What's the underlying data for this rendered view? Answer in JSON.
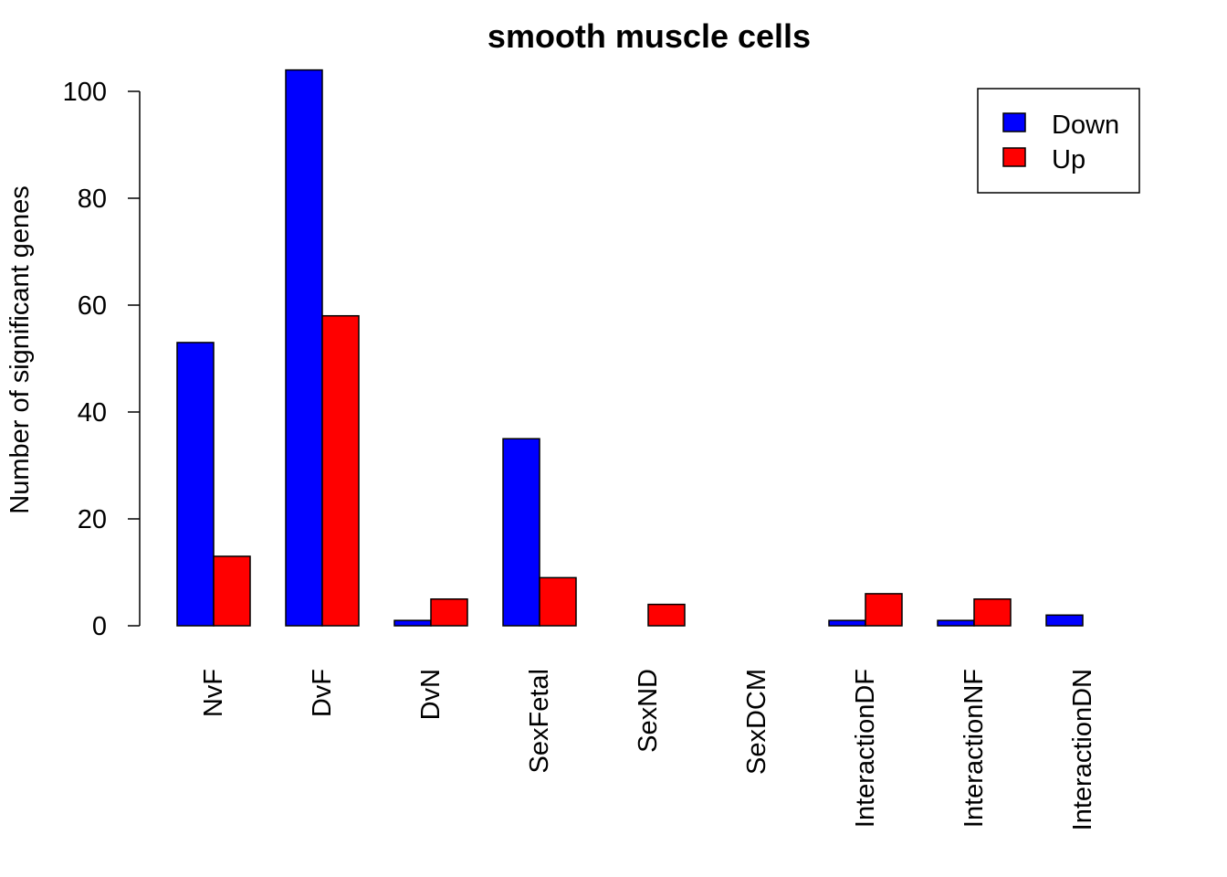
{
  "chart_data": {
    "type": "bar",
    "title": "smooth muscle cells",
    "xlabel": "",
    "ylabel": "Number of significant genes",
    "categories": [
      "NvF",
      "DvF",
      "DvN",
      "SexFetal",
      "SexND",
      "SexDCM",
      "InteractionDF",
      "InteractionNF",
      "InteractionDN"
    ],
    "series": [
      {
        "name": "Down",
        "color": "#0000ff",
        "values": [
          53,
          104,
          1,
          35,
          0,
          0,
          1,
          1,
          2
        ]
      },
      {
        "name": "Up",
        "color": "#ff0000",
        "values": [
          13,
          58,
          5,
          9,
          4,
          0,
          6,
          5,
          0
        ]
      }
    ],
    "yticks": [
      "0",
      "20",
      "40",
      "60",
      "80",
      "100"
    ],
    "ylim": [
      0,
      104
    ],
    "grid": false,
    "legend_position": "top-right"
  }
}
